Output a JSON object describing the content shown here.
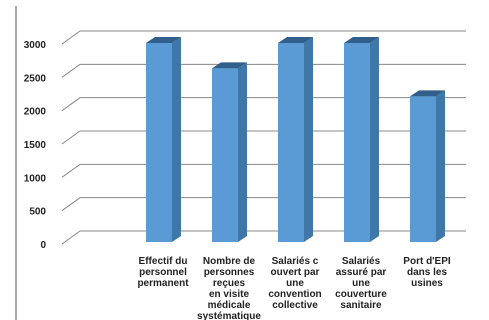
{
  "chart_data": {
    "type": "bar",
    "title": "",
    "xlabel": "",
    "ylabel": "",
    "ylim": [
      0,
      3000
    ],
    "yticks": [
      "0",
      "500",
      "1000",
      "1500",
      "2000",
      "2500",
      "3000"
    ],
    "grid": true,
    "legend": "none",
    "style": "3d-column",
    "categories": [
      [
        "Effectif du",
        "personnel",
        "permanent"
      ],
      [
        "Nombre de",
        "personnes",
        "reçues",
        "en visite",
        "médicale",
        "systématique"
      ],
      [
        "Salariés c",
        "ouvert par",
        "une",
        "convention",
        "collective"
      ],
      [
        "Salariés",
        "assuré par",
        "une",
        "couverture",
        "sanitaire"
      ],
      [
        "Port d'EPI",
        "dans les",
        "usines"
      ]
    ],
    "values": [
      3000,
      2620,
      3000,
      3000,
      2200
    ],
    "colors": {
      "bar_front": "#5b9bd5",
      "bar_side": "#3f77a8",
      "bar_top": "#2f5f8a",
      "grid": "#888888",
      "frame": "#555555"
    }
  }
}
